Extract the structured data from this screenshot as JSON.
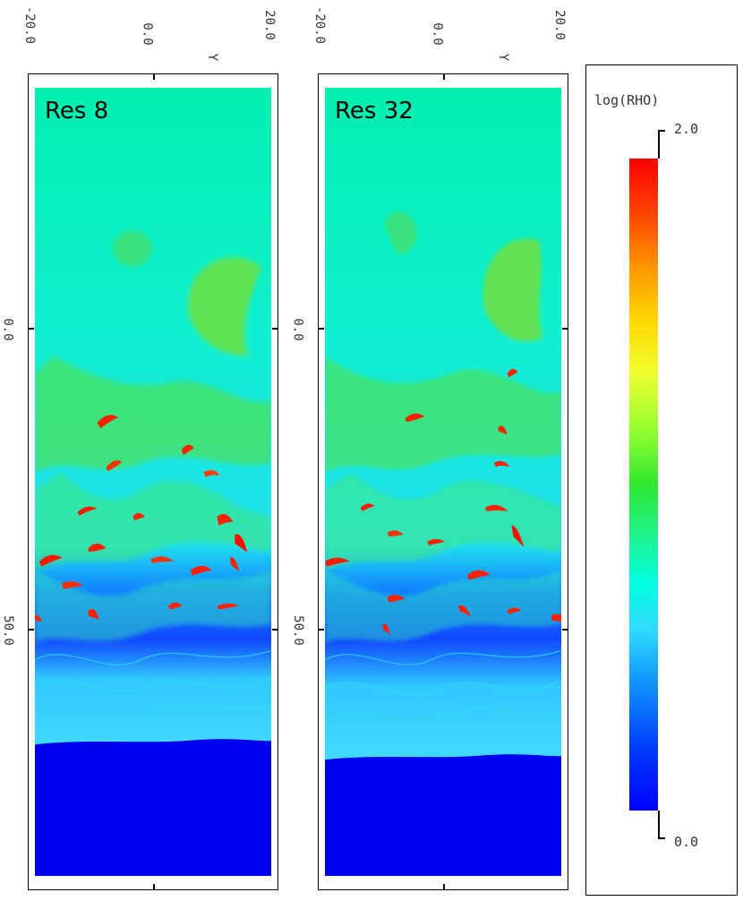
{
  "panels": [
    {
      "label": "Res 8"
    },
    {
      "label": "Res 32"
    }
  ],
  "axes": {
    "y_axis_label": "Y",
    "y_ticks": [
      "-20.0",
      "0.0",
      "20.0"
    ],
    "x_ticks": [
      "0.0",
      "50.0"
    ]
  },
  "colorbar": {
    "title": "log(RHO)",
    "max_label": "2.0",
    "min_label": "0.0",
    "range": [
      0.0,
      2.0
    ]
  },
  "colors": {
    "high": "#ff0000",
    "mid": "#20e830",
    "ambient": "#00f0c0",
    "low": "#0000ff"
  }
}
